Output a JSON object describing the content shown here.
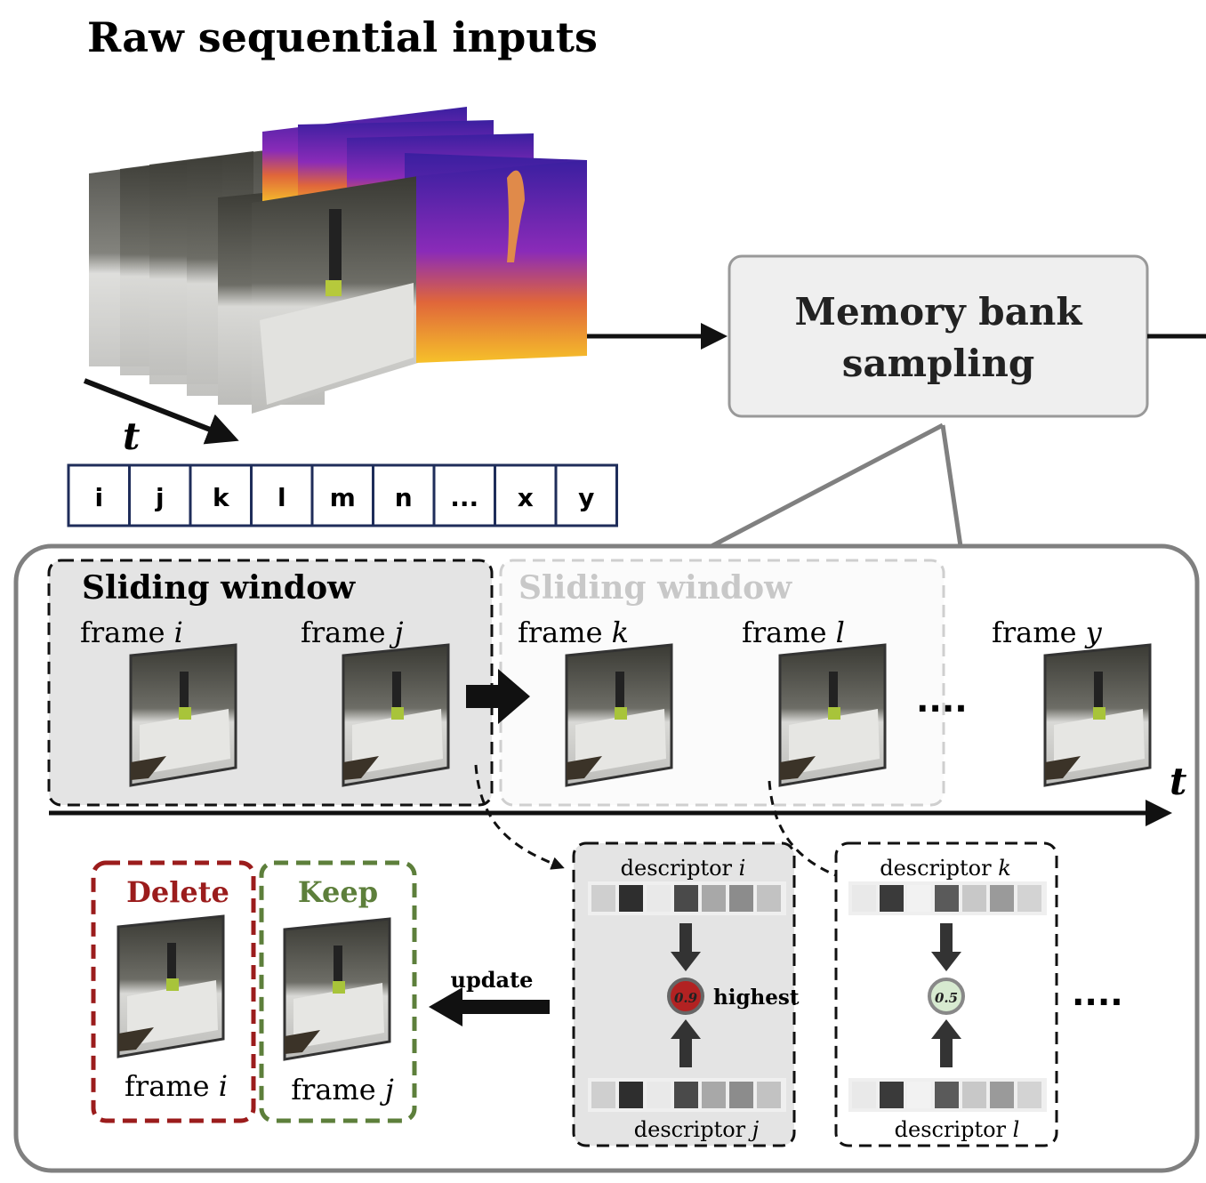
{
  "title": "Raw sequential inputs",
  "time_symbol": "t",
  "sequence_cells": [
    "i",
    "j",
    "k",
    "l",
    "m",
    "n",
    "...",
    "x",
    "y"
  ],
  "memory_bank_label": [
    "Memory bank",
    "sampling"
  ],
  "windows": {
    "active_title": "Sliding window",
    "next_title": "Sliding window"
  },
  "frames": {
    "prefix": "frame",
    "items": [
      {
        "var": "i"
      },
      {
        "var": "j"
      },
      {
        "var": "k"
      },
      {
        "var": "l"
      },
      {
        "var": "y"
      }
    ]
  },
  "ellipsis": "....",
  "descriptors": {
    "prefix": "descriptor",
    "group1": {
      "top": "i",
      "bottom": "j",
      "score": "0.9",
      "note": "highest"
    },
    "group2": {
      "top": "k",
      "bottom": "l",
      "score": "0.5"
    }
  },
  "update_label": "update",
  "delete": {
    "label": "Delete",
    "frame_var": "i",
    "color": "#9b1c1c"
  },
  "keep": {
    "label": "Keep",
    "frame_var": "j",
    "color": "#5d7f3b"
  },
  "colors": {
    "navy": "#1f2d5a",
    "panel_border": "#7f7f7f",
    "window_fill": "#e4e4e4",
    "faded_text": "#c8c8c8",
    "score_high": "#b22222",
    "score_low": "#d7ead0"
  }
}
